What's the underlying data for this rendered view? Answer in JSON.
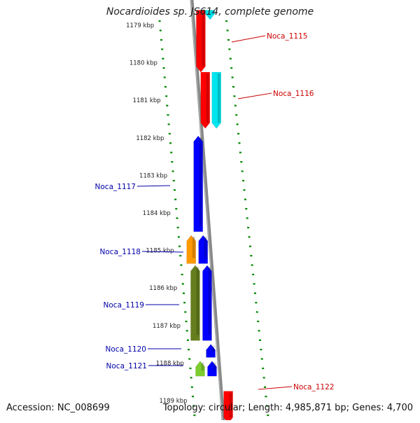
{
  "title": "Nocardioides sp. JS614, complete genome",
  "footer": {
    "accession": "Accession: NC_008699",
    "topology": "Topology: circular; Length: 4,985,871 bp; Genes: 4,700"
  },
  "diagram_data": {
    "ticks": [
      {
        "label": "1179 kbp",
        "kbp": 1179
      },
      {
        "label": "1180 kbp",
        "kbp": 1180
      },
      {
        "label": "1181 kbp",
        "kbp": 1181
      },
      {
        "label": "1182 kbp",
        "kbp": 1182
      },
      {
        "label": "1183 kbp",
        "kbp": 1183
      },
      {
        "label": "1184 kbp",
        "kbp": 1184
      },
      {
        "label": "1185 kbp",
        "kbp": 1185
      },
      {
        "label": "1186 kbp",
        "kbp": 1186
      },
      {
        "label": "1187 kbp",
        "kbp": 1187
      },
      {
        "label": "1188 kbp",
        "kbp": 1188
      },
      {
        "label": "1189 kbp",
        "kbp": 1189
      }
    ],
    "genes": [
      {
        "label": "Noca_1115",
        "strand": "forward",
        "start_kbp": 1178.6,
        "end_kbp": 1180.25,
        "color": "#ff0000",
        "label_color": "#cc0000"
      },
      {
        "label": "Noca_1116",
        "strand": "forward",
        "start_kbp": 1180.25,
        "end_kbp": 1181.75,
        "color": "#ff0000",
        "label_color": "#cc0000"
      },
      {
        "label": "",
        "strand": "forward-outer",
        "start_kbp": 1178.6,
        "end_kbp": 1178.85,
        "color": "#00e5ee",
        "label_color": "#000000"
      },
      {
        "label": "",
        "strand": "forward-outer",
        "start_kbp": 1180.25,
        "end_kbp": 1181.75,
        "color": "#00e5ee",
        "label_color": "#000000"
      },
      {
        "label": "Noca_1117",
        "strand": "reverse",
        "start_kbp": 1181.95,
        "end_kbp": 1184.5,
        "color": "#0000ff",
        "label_color": "#0000aa"
      },
      {
        "label": "Noca_1118",
        "strand": "reverse",
        "start_kbp": 1184.6,
        "end_kbp": 1185.35,
        "color": "#0000ff",
        "label_color": "#0000aa"
      },
      {
        "label": "",
        "strand": "reverse-outer",
        "start_kbp": 1184.6,
        "end_kbp": 1185.35,
        "color": "#ff9900",
        "label_color": "#000000"
      },
      {
        "label": "Noca_1119",
        "strand": "reverse",
        "start_kbp": 1185.4,
        "end_kbp": 1187.4,
        "color": "#0000ff",
        "label_color": "#0000aa"
      },
      {
        "label": "",
        "strand": "reverse-outer",
        "start_kbp": 1185.4,
        "end_kbp": 1187.4,
        "color": "#667f1e",
        "label_color": "#000000"
      },
      {
        "label": "Noca_1120",
        "strand": "reverse",
        "start_kbp": 1187.5,
        "end_kbp": 1187.85,
        "color": "#0000ff",
        "label_color": "#0000aa"
      },
      {
        "label": "Noca_1121",
        "strand": "reverse",
        "start_kbp": 1187.95,
        "end_kbp": 1188.35,
        "color": "#0000ff",
        "label_color": "#0000aa"
      },
      {
        "label": "",
        "strand": "reverse-outer",
        "start_kbp": 1187.95,
        "end_kbp": 1188.35,
        "color": "#7ccd2e",
        "label_color": "#000000"
      },
      {
        "label": "Noca_1122",
        "strand": "forward",
        "start_kbp": 1188.75,
        "end_kbp": 1189.6,
        "color": "#ff0000",
        "label_color": "#cc0000"
      }
    ],
    "colors": {
      "backbone": "#888888",
      "tick_marks": "#008800",
      "forward_label": "#cc0000",
      "reverse_label": "#0000aa"
    }
  }
}
